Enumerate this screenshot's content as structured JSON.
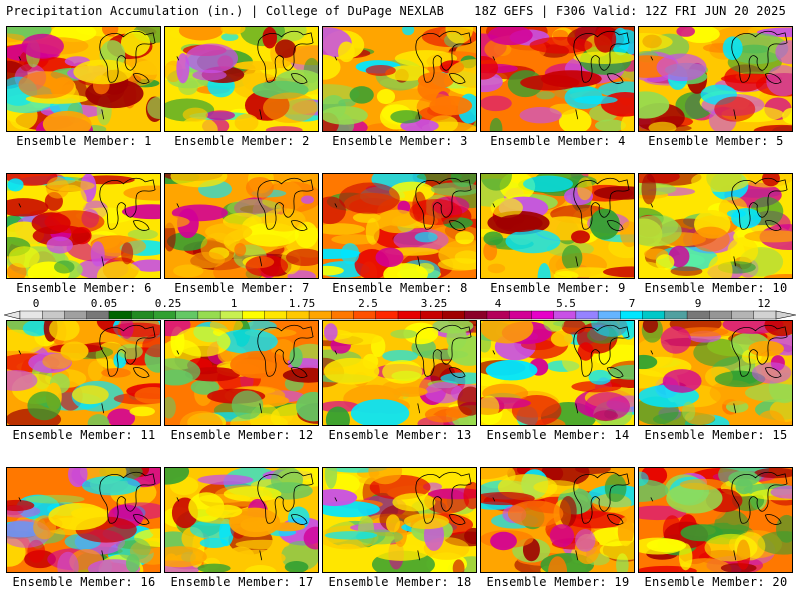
{
  "header": {
    "left": "Precipitation Accumulation (in.) | College of DuPage NEXLAB",
    "right": "18Z GEFS | F306 Valid: 12Z FRI JUN 20 2025"
  },
  "members": [
    {
      "label": "Ensemble Member: 1"
    },
    {
      "label": "Ensemble Member: 2"
    },
    {
      "label": "Ensemble Member: 3"
    },
    {
      "label": "Ensemble Member: 4"
    },
    {
      "label": "Ensemble Member: 5"
    },
    {
      "label": "Ensemble Member: 6"
    },
    {
      "label": "Ensemble Member: 7"
    },
    {
      "label": "Ensemble Member: 8"
    },
    {
      "label": "Ensemble Member: 9"
    },
    {
      "label": "Ensemble Member: 10"
    },
    {
      "label": "Ensemble Member: 11"
    },
    {
      "label": "Ensemble Member: 12"
    },
    {
      "label": "Ensemble Member: 13"
    },
    {
      "label": "Ensemble Member: 14"
    },
    {
      "label": "Ensemble Member: 15"
    },
    {
      "label": "Ensemble Member: 16"
    },
    {
      "label": "Ensemble Member: 17"
    },
    {
      "label": "Ensemble Member: 18"
    },
    {
      "label": "Ensemble Member: 19"
    },
    {
      "label": "Ensemble Member: 20"
    }
  ],
  "colorbar": {
    "labels": [
      "0",
      "0.05",
      "0.25",
      "1",
      "1.75",
      "2.5",
      "3.25",
      "4",
      "5.5",
      "7",
      "9",
      "12"
    ],
    "colors": [
      "#e6e6e6",
      "#c8c8c8",
      "#a0a0a0",
      "#787878",
      "#006400",
      "#228b22",
      "#32a032",
      "#64c864",
      "#96dc50",
      "#c8f050",
      "#ffff00",
      "#ffe600",
      "#ffc800",
      "#ffa500",
      "#ff7800",
      "#ff5000",
      "#ff2800",
      "#e60000",
      "#c80000",
      "#a00000",
      "#8b0028",
      "#b4005a",
      "#d20096",
      "#e600c8",
      "#c850e6",
      "#9682ff",
      "#64b4ff",
      "#00e6ff",
      "#00c8c8",
      "#50a0a0",
      "#787878",
      "#969696",
      "#b4b4b4",
      "#d2d2d2"
    ]
  }
}
